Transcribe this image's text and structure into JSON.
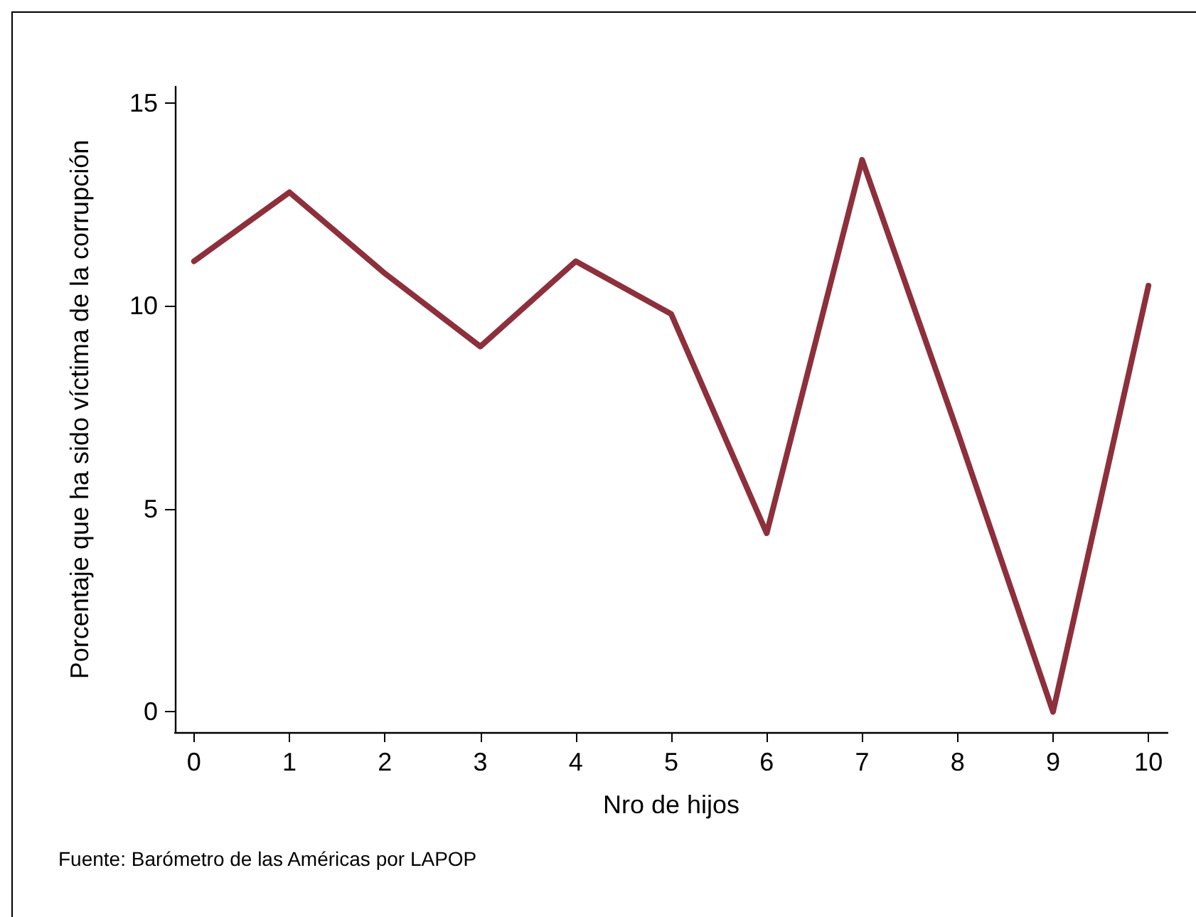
{
  "chart_data": {
    "type": "line",
    "xlabel": "Nro de hijos",
    "ylabel": "Porcentaje que ha sido víctima de la corrupción",
    "x": [
      0,
      1,
      2,
      3,
      4,
      5,
      6,
      7,
      8,
      9,
      10
    ],
    "series": [
      {
        "color": "#8e2f3c",
        "values": [
          11.1,
          12.8,
          10.8,
          9.0,
          11.1,
          9.8,
          4.4,
          13.6,
          6.9,
          0,
          10.5
        ]
      }
    ],
    "xlim": [
      -0.2,
      10.2
    ],
    "xticks": [
      0,
      1,
      2,
      3,
      4,
      5,
      6,
      7,
      8,
      9,
      10
    ],
    "ylim": [
      -0.5,
      15.4
    ],
    "yticks": [
      0,
      5,
      10,
      15
    ],
    "grid": false,
    "marker": "none",
    "line_style": "solid",
    "annotations": [
      "Fuente: Barómetro de las Américas por LAPOP"
    ]
  }
}
